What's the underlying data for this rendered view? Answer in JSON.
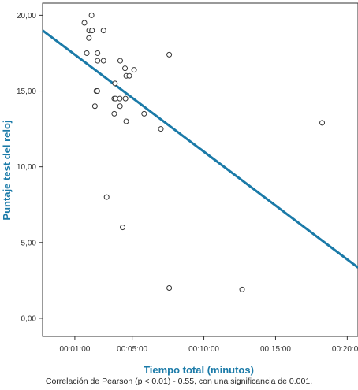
{
  "colors": {
    "axis_title": "#1a7aa8",
    "regression": "#1a7aa8",
    "points": "#333333",
    "frame": "#333333"
  },
  "chart_data": {
    "type": "scatter",
    "title": "",
    "xlabel": "Tiempo total (minutos)",
    "ylabel": "Puntaje test del reloj",
    "x_unit": "seconds",
    "xlim": [
      -75,
      1245
    ],
    "ylim": [
      -1.2,
      20.8
    ],
    "x_ticks": [
      {
        "value": 60,
        "label": "00:01:00"
      },
      {
        "value": 300,
        "label": "00:05:00"
      },
      {
        "value": 600,
        "label": "00:10:00"
      },
      {
        "value": 900,
        "label": "00:15:00"
      },
      {
        "value": 1200,
        "label": "00:20:00"
      }
    ],
    "y_ticks": [
      {
        "value": 0,
        "label": "0,00"
      },
      {
        "value": 5,
        "label": "5,00"
      },
      {
        "value": 10,
        "label": "10,00"
      },
      {
        "value": 15,
        "label": "15,00"
      },
      {
        "value": 20,
        "label": "20,00"
      }
    ],
    "grid": false,
    "points": [
      {
        "x": 100,
        "y": 19.5
      },
      {
        "x": 130,
        "y": 20.0
      },
      {
        "x": 120,
        "y": 19.0
      },
      {
        "x": 132,
        "y": 19.0
      },
      {
        "x": 119,
        "y": 18.5
      },
      {
        "x": 110,
        "y": 17.5
      },
      {
        "x": 180,
        "y": 19.0
      },
      {
        "x": 155,
        "y": 17.5
      },
      {
        "x": 155,
        "y": 17.0
      },
      {
        "x": 180,
        "y": 17.0
      },
      {
        "x": 250,
        "y": 17.0
      },
      {
        "x": 270,
        "y": 16.5
      },
      {
        "x": 308,
        "y": 16.4
      },
      {
        "x": 455,
        "y": 17.4
      },
      {
        "x": 275,
        "y": 16.0
      },
      {
        "x": 288,
        "y": 16.0
      },
      {
        "x": 228,
        "y": 15.5
      },
      {
        "x": 150,
        "y": 15.0
      },
      {
        "x": 154,
        "y": 15.0
      },
      {
        "x": 225,
        "y": 14.5
      },
      {
        "x": 230,
        "y": 14.5
      },
      {
        "x": 248,
        "y": 14.5
      },
      {
        "x": 272,
        "y": 14.5
      },
      {
        "x": 144,
        "y": 14.0
      },
      {
        "x": 249,
        "y": 14.0
      },
      {
        "x": 225,
        "y": 13.5
      },
      {
        "x": 350,
        "y": 13.5
      },
      {
        "x": 275,
        "y": 13.0
      },
      {
        "x": 420,
        "y": 12.5
      },
      {
        "x": 1095,
        "y": 12.9
      },
      {
        "x": 193,
        "y": 8.0
      },
      {
        "x": 260,
        "y": 6.0
      },
      {
        "x": 455,
        "y": 2.0
      },
      {
        "x": 760,
        "y": 1.9
      }
    ],
    "regression_line": {
      "x": [
        -75,
        1245
      ],
      "y": [
        19.0,
        3.35
      ]
    },
    "annotations": [
      "Correlación de Pearson (p < 0.01) - 0.55, con una significancia de 0.001."
    ]
  }
}
